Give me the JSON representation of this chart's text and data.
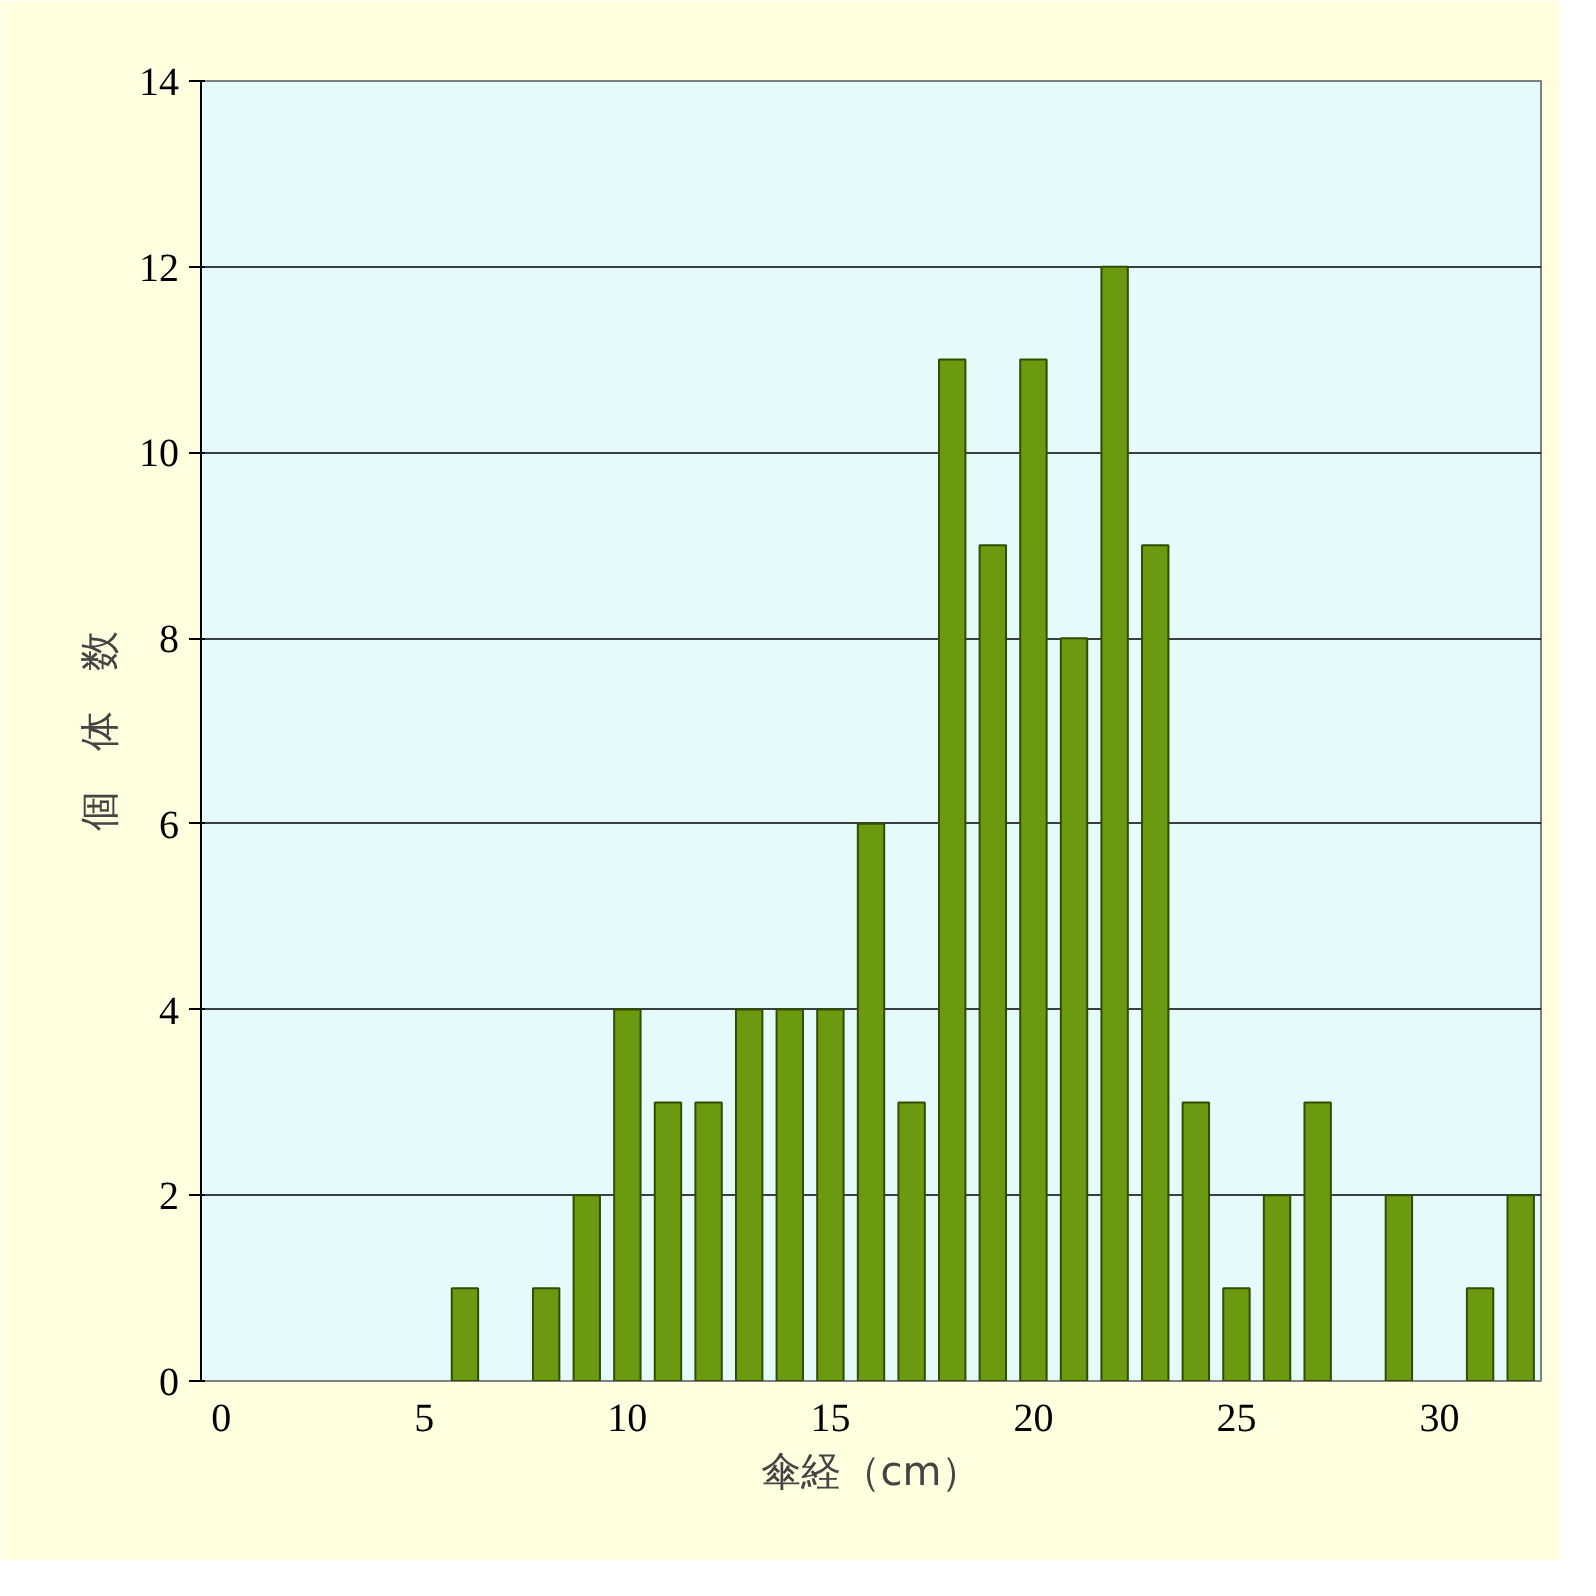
{
  "chart_data": {
    "type": "bar",
    "xlabel": "傘経（cm）",
    "ylabel": "個　体　数",
    "x": [
      6,
      8,
      9,
      10,
      11,
      12,
      13,
      14,
      15,
      16,
      17,
      18,
      19,
      20,
      21,
      22,
      23,
      24,
      25,
      26,
      27,
      29,
      31,
      32
    ],
    "values": [
      1,
      1,
      2,
      4,
      3,
      3,
      4,
      4,
      4,
      6,
      3,
      11,
      9,
      11,
      8,
      12,
      9,
      3,
      1,
      2,
      3,
      2,
      1,
      2
    ],
    "color": "#6b9a10",
    "xlim": [
      -0.5,
      32.5
    ],
    "xticks": [
      0,
      5,
      10,
      15,
      20,
      25,
      30
    ],
    "ylim": [
      0,
      14
    ],
    "yticks": [
      0,
      2,
      4,
      6,
      8,
      10,
      12,
      14
    ],
    "grid": "y"
  }
}
